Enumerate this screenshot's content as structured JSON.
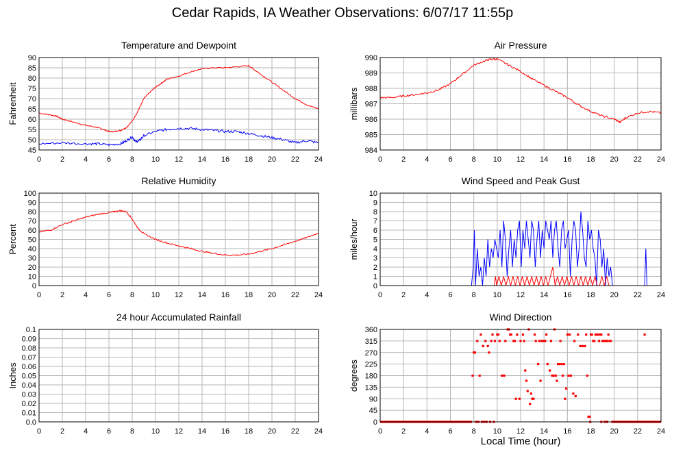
{
  "page": {
    "title": "Cedar Rapids, IA Weather Observations: 6/07/17 11:55p",
    "xlabel": "Local Time (hour)"
  },
  "colors": {
    "red": "#ff0000",
    "blue": "#0000ff",
    "grid": "#b4b4b4",
    "frame": "#000000"
  },
  "chart_data": [
    {
      "id": "temp",
      "type": "line",
      "title": "Temperature and Dewpoint",
      "ylabel": "Fahrenheit",
      "xlim": [
        0,
        24
      ],
      "ylim": [
        45,
        90
      ],
      "xticks": [
        0,
        2,
        4,
        6,
        8,
        10,
        12,
        14,
        16,
        18,
        20,
        22,
        24
      ],
      "yticks": [
        45,
        50,
        55,
        60,
        65,
        70,
        75,
        80,
        85,
        90
      ],
      "grid": true,
      "series": [
        {
          "color": "#ff0000",
          "noise": 0.3,
          "x": [
            0,
            1,
            1.5,
            2,
            3,
            4,
            5,
            5.5,
            6,
            6.5,
            7,
            7.5,
            8,
            8.5,
            9,
            9.5,
            10,
            10.5,
            11,
            12,
            13,
            14,
            15,
            16,
            17,
            18,
            18.5,
            19,
            20,
            21,
            22,
            23,
            24
          ],
          "y": [
            63,
            62,
            61.5,
            60,
            58.5,
            57,
            56,
            55,
            54,
            54,
            54.5,
            56,
            59,
            64,
            70,
            73,
            75.5,
            77.5,
            79.5,
            81,
            83,
            84.5,
            85,
            85,
            85.5,
            86,
            84,
            82,
            78,
            74,
            70,
            67,
            65
          ]
        },
        {
          "color": "#0000ff",
          "noise": 0.6,
          "x": [
            0,
            2,
            4,
            5,
            6,
            7,
            7.5,
            8,
            8.3,
            8.6,
            9,
            10,
            11,
            12,
            13,
            14,
            15,
            16,
            17,
            18,
            19,
            20,
            21,
            22,
            23,
            24
          ],
          "y": [
            48,
            48.5,
            48,
            48,
            47.5,
            48,
            49.5,
            51.5,
            49,
            49.5,
            52,
            54,
            55,
            55.5,
            55.5,
            55,
            54.5,
            54,
            54,
            53,
            52,
            51,
            50,
            48.5,
            49.5,
            48.5
          ]
        }
      ]
    },
    {
      "id": "pressure",
      "type": "line",
      "title": "Air Pressure",
      "ylabel": "millibars",
      "xlim": [
        0,
        24
      ],
      "ylim": [
        984,
        990
      ],
      "xticks": [
        0,
        2,
        4,
        6,
        8,
        10,
        12,
        14,
        16,
        18,
        20,
        22,
        24
      ],
      "yticks": [
        984,
        985,
        986,
        987,
        988,
        989,
        990
      ],
      "grid": true,
      "series": [
        {
          "color": "#ff0000",
          "noise": 0.06,
          "x": [
            0,
            1,
            2,
            3,
            4,
            5,
            6,
            7,
            8,
            9,
            9.5,
            10,
            11,
            12,
            13,
            14,
            15,
            16,
            17,
            18,
            19,
            20,
            20.5,
            21,
            22,
            23,
            24
          ],
          "y": [
            987.4,
            987.4,
            987.5,
            987.6,
            987.7,
            987.9,
            988.3,
            988.9,
            989.5,
            989.8,
            989.9,
            989.9,
            989.5,
            989.1,
            988.6,
            988.2,
            987.8,
            987.4,
            986.9,
            986.5,
            986.2,
            986.0,
            985.8,
            986.1,
            986.4,
            986.5,
            986.4
          ]
        }
      ]
    },
    {
      "id": "humidity",
      "type": "line",
      "title": "Relative Humidity",
      "ylabel": "Percent",
      "xlim": [
        0,
        24
      ],
      "ylim": [
        0,
        100
      ],
      "xticks": [
        0,
        2,
        4,
        6,
        8,
        10,
        12,
        14,
        16,
        18,
        20,
        22,
        24
      ],
      "yticks": [
        0,
        10,
        20,
        30,
        40,
        50,
        60,
        70,
        80,
        90,
        100
      ],
      "grid": true,
      "series": [
        {
          "color": "#ff0000",
          "noise": 0.8,
          "x": [
            0,
            1,
            2,
            3,
            4,
            5,
            6,
            6.5,
            7,
            7.5,
            8,
            8.5,
            9,
            10,
            11,
            12,
            13,
            14,
            15,
            16,
            17,
            18,
            19,
            20,
            21,
            22,
            23,
            24
          ],
          "y": [
            58,
            60,
            66,
            70,
            74,
            77,
            79,
            80,
            81,
            80,
            72,
            62,
            56,
            50,
            46,
            43,
            40,
            37,
            35,
            33,
            33,
            34,
            37,
            40,
            44,
            48,
            52,
            57
          ]
        }
      ]
    },
    {
      "id": "wind",
      "type": "line",
      "title": "Wind Speed and Peak Gust",
      "ylabel": "miles/hour",
      "xlim": [
        0,
        24
      ],
      "ylim": [
        0,
        10
      ],
      "xticks": [
        0,
        2,
        4,
        6,
        8,
        10,
        12,
        14,
        16,
        18,
        20,
        22,
        24
      ],
      "yticks": [
        0,
        1,
        2,
        3,
        4,
        5,
        6,
        7,
        8,
        9,
        10
      ],
      "grid": true,
      "series": [
        {
          "color": "#0000ff",
          "noise": 0,
          "x": [
            0,
            7.8,
            7.95,
            8.05,
            8.15,
            8.3,
            8.45,
            8.6,
            8.75,
            8.9,
            9.05,
            9.2,
            9.35,
            9.5,
            9.65,
            9.8,
            9.95,
            10.1,
            10.25,
            10.4,
            10.55,
            10.7,
            10.85,
            11.0,
            11.15,
            11.3,
            11.45,
            11.6,
            11.75,
            11.9,
            12.05,
            12.2,
            12.35,
            12.5,
            12.65,
            12.8,
            12.95,
            13.1,
            13.25,
            13.4,
            13.55,
            13.7,
            13.85,
            14.0,
            14.15,
            14.3,
            14.45,
            14.6,
            14.75,
            14.9,
            15.05,
            15.2,
            15.35,
            15.5,
            15.65,
            15.8,
            15.95,
            16.1,
            16.25,
            16.4,
            16.55,
            16.7,
            16.85,
            17.0,
            17.15,
            17.3,
            17.45,
            17.6,
            17.75,
            17.9,
            18.05,
            18.2,
            18.35,
            18.5,
            18.65,
            18.8,
            18.95,
            19.1,
            19.25,
            19.4,
            19.55,
            19.7,
            19.85,
            22.6,
            22.7,
            22.8,
            24
          ],
          "y": [
            0,
            0,
            2,
            6,
            0,
            4,
            1,
            2,
            0,
            3,
            1,
            5,
            2,
            4,
            3,
            5,
            4,
            3,
            6,
            2,
            7,
            5,
            1,
            4,
            6,
            2,
            5,
            3,
            6,
            7,
            2,
            6,
            4,
            7,
            5,
            3,
            7,
            6,
            2,
            5,
            7,
            3,
            6,
            4,
            7,
            6,
            5,
            7,
            3,
            6,
            7,
            4,
            2,
            6,
            7,
            4,
            5,
            6,
            1,
            5,
            7,
            6,
            2,
            4,
            8,
            6,
            3,
            2,
            7,
            5,
            6,
            4,
            3,
            0,
            6,
            5,
            2,
            4,
            0,
            3,
            1,
            2,
            0,
            0,
            4,
            0,
            0
          ]
        },
        {
          "color": "#ff0000",
          "noise": 0,
          "x": [
            0,
            9.75,
            9.85,
            9.95,
            10.15,
            10.35,
            10.55,
            10.75,
            10.95,
            11.15,
            11.35,
            11.55,
            11.75,
            11.95,
            12.15,
            12.35,
            12.55,
            12.75,
            12.95,
            13.15,
            13.35,
            13.55,
            13.75,
            13.95,
            14.15,
            14.35,
            14.55,
            14.75,
            14.95,
            15.15,
            15.35,
            15.55,
            15.75,
            15.95,
            16.15,
            16.35,
            16.55,
            16.75,
            16.95,
            17.15,
            17.35,
            17.55,
            17.75,
            17.95,
            18.15,
            18.35,
            18.55,
            18.75,
            18.95,
            19.15,
            19.35,
            19.55,
            24
          ],
          "y": [
            0,
            0,
            1,
            0,
            1,
            0,
            1,
            0,
            1,
            0,
            1,
            0,
            1,
            0,
            1,
            0,
            1,
            0,
            1,
            0,
            1,
            0,
            1,
            0,
            1,
            0,
            1,
            2,
            0,
            1,
            0,
            1,
            0,
            1,
            0,
            1,
            0,
            1,
            0,
            1,
            0,
            1,
            0,
            1,
            0,
            1,
            0,
            0,
            1,
            0,
            1,
            0,
            0
          ]
        }
      ]
    },
    {
      "id": "rain",
      "type": "line",
      "title": "24 hour Accumulated Rainfall",
      "ylabel": "Inches",
      "xlim": [
        0,
        24
      ],
      "ylim": [
        0,
        0.1
      ],
      "xticks": [
        0,
        2,
        4,
        6,
        8,
        10,
        12,
        14,
        16,
        18,
        20,
        22,
        24
      ],
      "yticks": [
        0.0,
        0.01,
        0.02,
        0.03,
        0.04,
        0.05,
        0.06,
        0.07,
        0.08,
        0.09,
        0.1
      ],
      "ytick_labels": [
        "0.0",
        "0.01",
        "0.02",
        "0.03",
        "0.04",
        "0.05",
        "0.06",
        "0.07",
        "0.08",
        "0.09",
        "0.1"
      ],
      "grid": true,
      "series": [
        {
          "color": "#ff0000",
          "noise": 0,
          "x": [
            0,
            24
          ],
          "y": [
            0,
            0
          ]
        },
        {
          "color": "#0000ff",
          "noise": 0,
          "x": [
            0,
            24
          ],
          "y": [
            0,
            0
          ]
        }
      ]
    },
    {
      "id": "direction",
      "type": "scatter",
      "title": "Wind Direction",
      "ylabel": "degrees",
      "xlim": [
        0,
        24
      ],
      "ylim": [
        0,
        360
      ],
      "xticks": [
        0,
        2,
        4,
        6,
        8,
        10,
        12,
        14,
        16,
        18,
        20,
        22,
        24
      ],
      "yticks": [
        0,
        45,
        90,
        135,
        180,
        225,
        270,
        315,
        360
      ],
      "grid": true,
      "series": [
        {
          "color": "#ff0000",
          "x": [
            7.9,
            8.0,
            8.1,
            8.3,
            8.5,
            8.6,
            8.8,
            9.0,
            9.2,
            9.3,
            9.5,
            9.6,
            9.8,
            10.0,
            10.1,
            10.2,
            10.4,
            10.6,
            10.7,
            10.9,
            11.0,
            11.1,
            11.2,
            11.4,
            11.5,
            11.6,
            11.7,
            11.9,
            12.0,
            12.2,
            12.3,
            12.4,
            12.5,
            12.6,
            12.7,
            12.8,
            12.9,
            13.0,
            13.1,
            13.2,
            13.3,
            13.5,
            13.6,
            13.7,
            13.8,
            13.9,
            14.0,
            14.1,
            14.2,
            14.3,
            14.5,
            14.6,
            14.7,
            14.8,
            14.9,
            15.0,
            15.1,
            15.2,
            15.3,
            15.4,
            15.5,
            15.6,
            15.7,
            15.8,
            15.9,
            16.0,
            16.1,
            16.2,
            16.3,
            16.5,
            16.6,
            16.7,
            16.9,
            17.1,
            17.3,
            17.5,
            17.6,
            17.7,
            17.8,
            17.9,
            18.0,
            18.1,
            18.2,
            18.3,
            18.4,
            18.5,
            18.6,
            18.7,
            18.8,
            18.9,
            19.0,
            19.1,
            19.2,
            19.3,
            19.4,
            19.5,
            19.6,
            19.7,
            22.6
          ],
          "y": [
            180,
            270,
            270,
            315,
            180,
            340,
            295,
            315,
            295,
            270,
            315,
            340,
            315,
            340,
            340,
            315,
            180,
            180,
            315,
            360,
            360,
            340,
            340,
            315,
            315,
            90,
            340,
            90,
            315,
            340,
            315,
            200,
            160,
            120,
            360,
            70,
            110,
            90,
            90,
            340,
            315,
            225,
            315,
            160,
            315,
            315,
            315,
            315,
            340,
            225,
            200,
            315,
            180,
            180,
            360,
            180,
            160,
            225,
            225,
            315,
            225,
            180,
            225,
            90,
            130,
            340,
            180,
            340,
            180,
            110,
            315,
            100,
            340,
            295,
            295,
            295,
            340,
            180,
            20,
            20,
            340,
            340,
            315,
            315,
            340,
            340,
            340,
            315,
            340,
            340,
            315,
            315,
            315,
            315,
            315,
            340,
            315,
            315,
            340
          ]
        },
        {
          "color": "#ff0000",
          "kind": "zero-run",
          "runs": [
            [
              0,
              7.85
            ],
            [
              19.75,
              24
            ]
          ],
          "x": [
            8.2,
            8.4,
            8.7,
            8.9,
            9.1,
            9.4,
            9.7,
            17.95,
            18.9,
            19.2,
            19.4
          ],
          "y": [
            0,
            0,
            0,
            0,
            0,
            0,
            0,
            0,
            0,
            0,
            0
          ]
        }
      ]
    }
  ]
}
